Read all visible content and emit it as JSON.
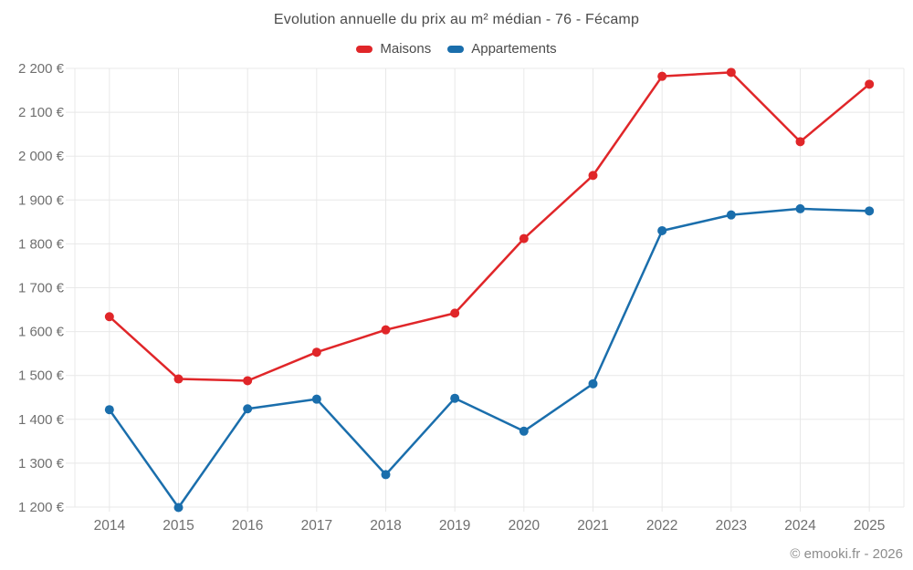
{
  "header": {
    "title": "Evolution annuelle du prix au m² médian - 76 - Fécamp"
  },
  "legend": {
    "items": [
      {
        "label": "Maisons",
        "color": "#e02629"
      },
      {
        "label": "Appartements",
        "color": "#1a6eac"
      }
    ]
  },
  "footer": {
    "credit": "© emooki.fr - 2026"
  },
  "colors": {
    "grid": "#e8e8e8",
    "tick_text": "#6f6f6f",
    "title_text": "#4b4b4b",
    "credit_text": "#8c8c8c"
  },
  "chart_data": {
    "type": "line",
    "title": "Evolution annuelle du prix au m² médian - 76 - Fécamp",
    "x": [
      "2014",
      "2015",
      "2016",
      "2017",
      "2018",
      "2019",
      "2020",
      "2021",
      "2022",
      "2023",
      "2024",
      "2025"
    ],
    "series": [
      {
        "name": "Maisons",
        "color": "#e02629",
        "values": [
          1634,
          1492,
          1488,
          1553,
          1604,
          1642,
          1812,
          1956,
          2182,
          2191,
          2033,
          2164
        ]
      },
      {
        "name": "Appartements",
        "color": "#1a6eac",
        "values": [
          1422,
          1199,
          1424,
          1446,
          1274,
          1448,
          1373,
          1481,
          1830,
          1866,
          1880,
          1875
        ]
      }
    ],
    "xlabel": "",
    "ylabel": "",
    "ylim": [
      1200,
      2200
    ],
    "y_tick_step": 100,
    "y_tick_format": "{value} €",
    "grid": true,
    "legend_position": "top",
    "marker_radius": 5
  }
}
